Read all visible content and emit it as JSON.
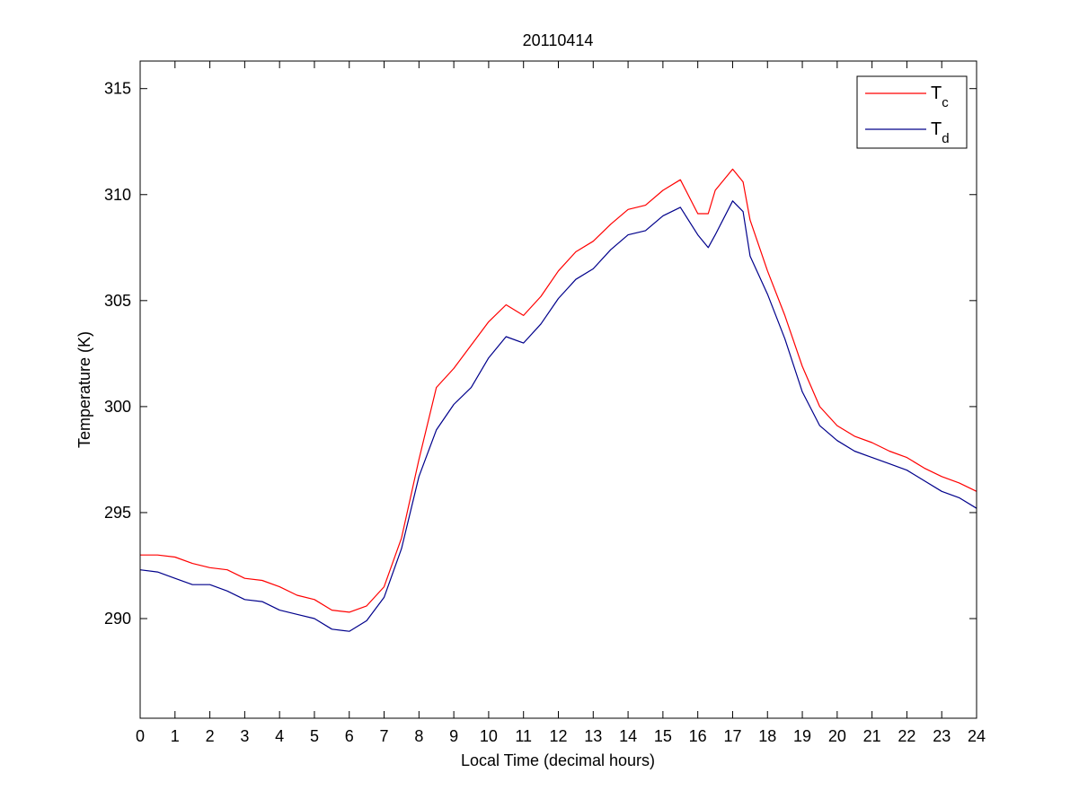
{
  "chart_data": {
    "type": "line",
    "title": "20110414",
    "xlabel": "Local Time (decimal hours)",
    "ylabel": "Temperature (K)",
    "xlim": [
      0,
      24
    ],
    "ylim": [
      285.3,
      316.3
    ],
    "xticks": [
      0,
      1,
      2,
      3,
      4,
      5,
      6,
      7,
      8,
      9,
      10,
      11,
      12,
      13,
      14,
      15,
      16,
      17,
      18,
      19,
      20,
      21,
      22,
      23,
      24
    ],
    "yticks": [
      290,
      295,
      300,
      305,
      310,
      315
    ],
    "grid": false,
    "legend_position": "top-right",
    "series": [
      {
        "name": "T",
        "subscript": "c",
        "color": "#ff0000",
        "x": [
          0,
          0.5,
          1,
          1.5,
          2,
          2.5,
          3,
          3.5,
          4,
          4.5,
          5,
          5.5,
          6,
          6.5,
          7,
          7.5,
          8,
          8.5,
          9,
          9.5,
          10,
          10.5,
          11,
          11.5,
          12,
          12.5,
          13,
          13.5,
          14,
          14.5,
          15,
          15.5,
          16,
          16.3,
          16.5,
          17,
          17.3,
          17.5,
          18,
          18.5,
          19,
          19.5,
          20,
          20.5,
          21,
          21.5,
          22,
          22.5,
          23,
          23.5,
          24
        ],
        "y": [
          293.0,
          293.0,
          292.9,
          292.6,
          292.4,
          292.3,
          291.9,
          291.8,
          291.5,
          291.1,
          290.9,
          290.4,
          290.3,
          290.6,
          291.5,
          293.8,
          297.5,
          300.9,
          301.8,
          302.9,
          304.0,
          304.8,
          304.3,
          305.2,
          306.4,
          307.3,
          307.8,
          308.6,
          309.3,
          309.5,
          310.2,
          310.7,
          309.1,
          309.1,
          310.2,
          311.2,
          310.6,
          308.8,
          306.4,
          304.3,
          301.9,
          300.0,
          299.1,
          298.6,
          298.3,
          297.9,
          297.6,
          297.1,
          296.7,
          296.4,
          296.0
        ]
      },
      {
        "name": "T",
        "subscript": "d",
        "color": "#00008b",
        "x": [
          0,
          0.5,
          1,
          1.5,
          2,
          2.5,
          3,
          3.5,
          4,
          4.5,
          5,
          5.5,
          6,
          6.5,
          7,
          7.5,
          8,
          8.5,
          9,
          9.5,
          10,
          10.5,
          11,
          11.5,
          12,
          12.5,
          13,
          13.5,
          14,
          14.5,
          15,
          15.5,
          16,
          16.3,
          16.5,
          17,
          17.3,
          17.5,
          18,
          18.5,
          19,
          19.5,
          20,
          20.5,
          21,
          21.5,
          22,
          22.5,
          23,
          23.5,
          24
        ],
        "y": [
          292.3,
          292.2,
          291.9,
          291.6,
          291.6,
          291.3,
          290.9,
          290.8,
          290.4,
          290.2,
          290.0,
          289.5,
          289.4,
          289.9,
          291.0,
          293.3,
          296.7,
          298.9,
          300.1,
          300.9,
          302.3,
          303.3,
          303.0,
          303.9,
          305.1,
          306.0,
          306.5,
          307.4,
          308.1,
          308.3,
          309.0,
          309.4,
          308.1,
          307.5,
          308.1,
          309.7,
          309.2,
          307.1,
          305.3,
          303.2,
          300.7,
          299.1,
          298.4,
          297.9,
          297.6,
          297.3,
          297.0,
          296.5,
          296.0,
          295.7,
          295.2
        ]
      }
    ]
  }
}
